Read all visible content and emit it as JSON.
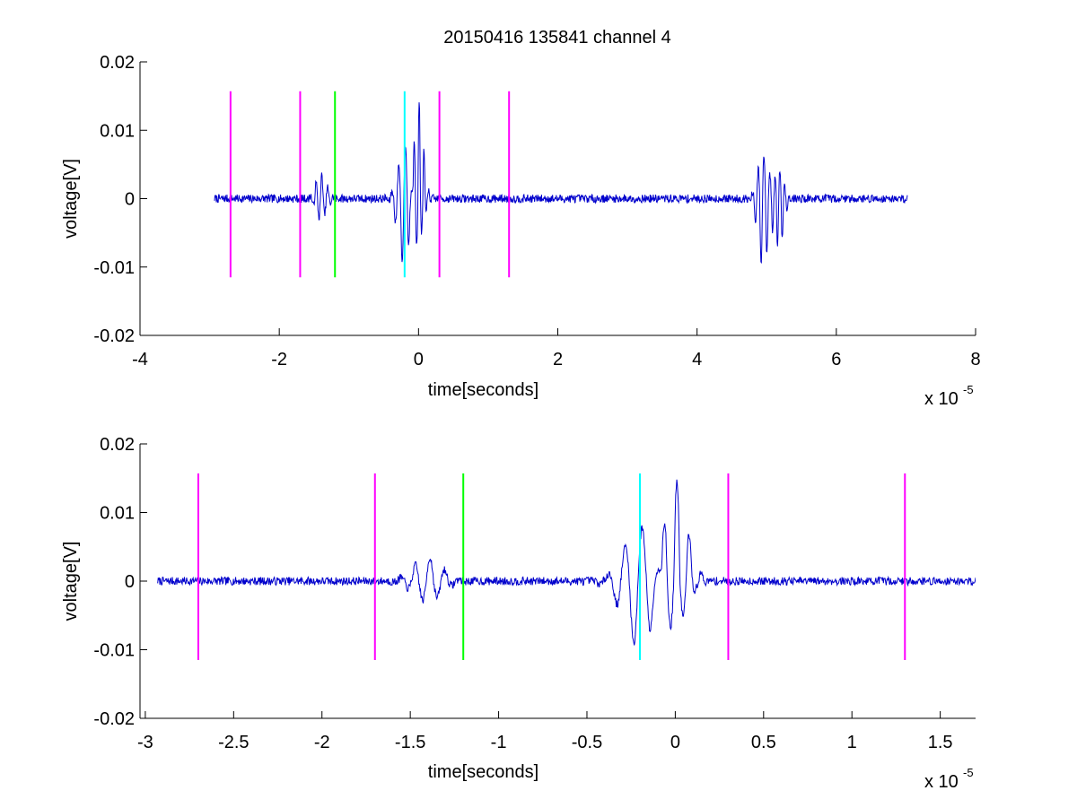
{
  "figure": {
    "title": "20150416 135841 channel 4"
  },
  "chart_data": [
    {
      "type": "line",
      "title": "20150416 135841 channel 4",
      "xlabel": "time[seconds]",
      "ylabel": "voltage[V]",
      "x_exponent_label": "x 10",
      "x_exponent_power": "-5",
      "xlim": [
        -4e-05,
        8e-05
      ],
      "ylim": [
        -0.02,
        0.02
      ],
      "x_ticks": [
        -4e-05,
        -2e-05,
        0,
        2e-05,
        4e-05,
        6e-05,
        8e-05
      ],
      "x_tick_labels": [
        "-4",
        "-2",
        "0",
        "2",
        "4",
        "6",
        "8"
      ],
      "y_ticks": [
        -0.02,
        -0.01,
        0,
        0.01,
        0.02
      ],
      "y_tick_labels": [
        "-0.02",
        "-0.01",
        "0",
        "0.01",
        "0.02"
      ],
      "grid": false,
      "trace_color": "#0000cc",
      "trace_range": [
        -2.93e-05,
        7.02e-05
      ],
      "bursts": [
        {
          "t": -1.4e-05,
          "ymax": 0.0035,
          "ymin": -0.003,
          "width": 1.2e-06
        },
        {
          "t": -2e-06,
          "ymax": 0.0077,
          "ymin": -0.0097,
          "width": 1.4e-06
        },
        {
          "t": 0.0,
          "ymax": 0.0143,
          "ymin": -0.0062,
          "width": 1e-06
        },
        {
          "t": 4.95e-05,
          "ymax": 0.0065,
          "ymin": -0.0102,
          "width": 1.2e-06
        },
        {
          "t": 5.18e-05,
          "ymax": 0.0045,
          "ymin": -0.0076,
          "width": 1e-06
        }
      ],
      "markers": [
        {
          "x": -2.7e-05,
          "color": "#ff00ff"
        },
        {
          "x": -1.7e-05,
          "color": "#ff00ff"
        },
        {
          "x": -1.2e-05,
          "color": "#00ff00"
        },
        {
          "x": -2e-06,
          "color": "#00ffff"
        },
        {
          "x": 3e-06,
          "color": "#ff00ff"
        },
        {
          "x": 1.3e-05,
          "color": "#ff00ff"
        }
      ],
      "marker_range": [
        -0.0115,
        0.0157
      ]
    },
    {
      "type": "line",
      "title": "",
      "xlabel": "time[seconds]",
      "ylabel": "voltage[V]",
      "x_exponent_label": "x 10",
      "x_exponent_power": "-5",
      "xlim": [
        -3.03e-05,
        1.7e-05
      ],
      "ylim": [
        -0.02,
        0.02
      ],
      "x_ticks": [
        -3e-05,
        -2.5e-05,
        -2e-05,
        -1.5e-05,
        -1e-05,
        -5e-06,
        0,
        5e-06,
        1e-05,
        1.5e-05
      ],
      "x_tick_labels": [
        "-3",
        "-2.5",
        "-2",
        "-1.5",
        "-1",
        "-0.5",
        "0",
        "0.5",
        "1",
        "1.5"
      ],
      "y_ticks": [
        -0.02,
        -0.01,
        0,
        0.01,
        0.02
      ],
      "y_tick_labels": [
        "-0.02",
        "-0.01",
        "0",
        "0.01",
        "0.02"
      ],
      "grid": false,
      "trace_color": "#0000cc",
      "trace_range": [
        -2.93e-05,
        1.7e-05
      ],
      "bursts": [
        {
          "t": -1.4e-05,
          "ymax": 0.0035,
          "ymin": -0.003,
          "width": 1.2e-06
        },
        {
          "t": -2e-06,
          "ymax": 0.0077,
          "ymin": -0.0097,
          "width": 1.4e-06
        },
        {
          "t": 0.0,
          "ymax": 0.0143,
          "ymin": -0.0062,
          "width": 1e-06
        }
      ],
      "markers": [
        {
          "x": -2.7e-05,
          "color": "#ff00ff"
        },
        {
          "x": -1.7e-05,
          "color": "#ff00ff"
        },
        {
          "x": -1.2e-05,
          "color": "#00ff00"
        },
        {
          "x": -2e-06,
          "color": "#00ffff"
        },
        {
          "x": 3e-06,
          "color": "#ff00ff"
        },
        {
          "x": 1.3e-05,
          "color": "#ff00ff"
        }
      ],
      "marker_range": [
        -0.0115,
        0.0157
      ]
    }
  ]
}
